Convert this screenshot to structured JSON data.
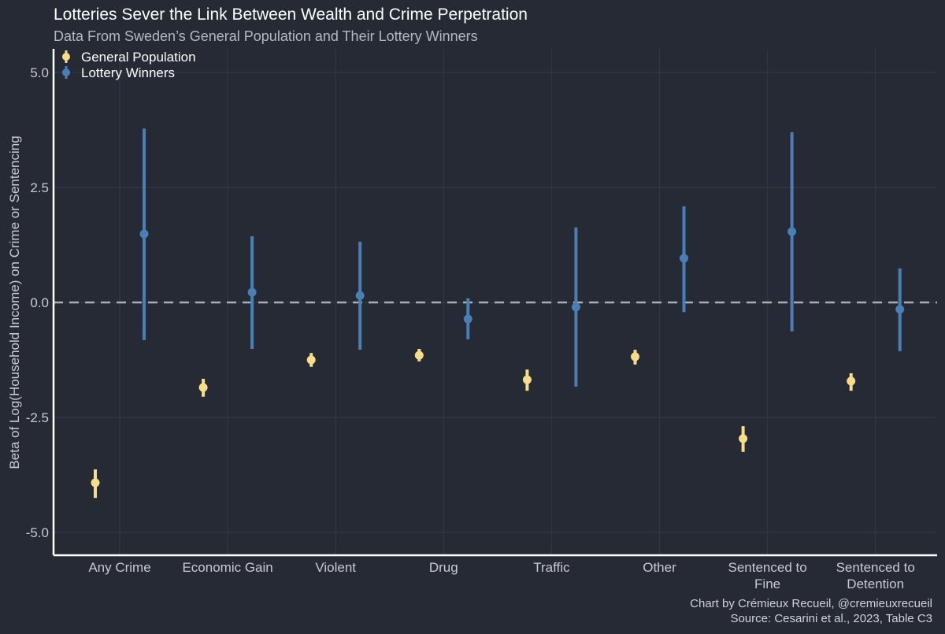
{
  "chart_data": {
    "type": "scatter",
    "title": "Lotteries Sever the Link Between Wealth and Crime Perpetration",
    "subtitle": "Data From Sweden’s General Population and Their Lottery Winners",
    "xlabel": "",
    "ylabel": "Beta of Log(Household Income) on Crime or Sentencing",
    "ylim": [
      -5.5,
      5.5
    ],
    "yticks": [
      5.0,
      2.5,
      0.0,
      -2.5,
      -5.0
    ],
    "ytick_labels": [
      "5.0",
      "2.5",
      "0.0",
      "-2.5",
      "-5.0"
    ],
    "grid": true,
    "reference_line": 0,
    "legend_placement": "top-left",
    "categories": [
      [
        "Any Crime"
      ],
      [
        "Economic Gain"
      ],
      [
        "Violent"
      ],
      [
        "Drug"
      ],
      [
        "Traffic"
      ],
      [
        "Other"
      ],
      [
        "Sentenced to",
        "Fine"
      ],
      [
        "Sentenced to",
        "Detention"
      ]
    ],
    "series": [
      {
        "name": "General Population",
        "color": "#f7dc8c",
        "values": [
          -3.92,
          -1.85,
          -1.25,
          -1.15,
          -1.68,
          -1.18,
          -2.96,
          -1.71
        ],
        "lower": [
          -4.25,
          -2.05,
          -1.4,
          -1.28,
          -1.92,
          -1.35,
          -3.25,
          -1.92
        ],
        "upper": [
          -3.63,
          -1.66,
          -1.1,
          -1.01,
          -1.46,
          -1.03,
          -2.69,
          -1.54
        ]
      },
      {
        "name": "Lottery Winners",
        "color": "#4a7fb5",
        "values": [
          1.49,
          0.22,
          0.15,
          -0.36,
          -0.1,
          0.96,
          1.54,
          -0.15
        ],
        "lower": [
          -0.82,
          -1.01,
          -1.03,
          -0.8,
          -1.83,
          -0.21,
          -0.63,
          -1.06
        ],
        "upper": [
          3.78,
          1.44,
          1.32,
          0.09,
          1.63,
          2.09,
          3.7,
          0.74
        ]
      }
    ],
    "caption": [
      "Chart by Crémieux Recueil, @cremieuxrecueil",
      "Source: Cesarini et al., 2023, Table C3"
    ]
  }
}
